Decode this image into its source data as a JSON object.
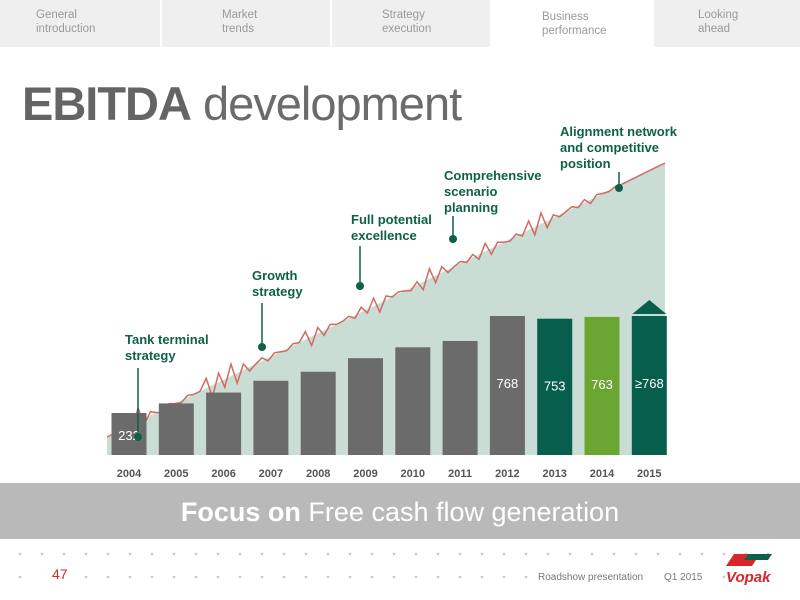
{
  "nav": {
    "tabs": [
      {
        "line1": "General",
        "line2": "introduction"
      },
      {
        "line1": "Market",
        "line2": "trends"
      },
      {
        "line1": "Strategy",
        "line2": "execution"
      },
      {
        "line1": "Business",
        "line2": "performance"
      },
      {
        "line1": "Looking",
        "line2": "ahead"
      }
    ],
    "active_index": 3
  },
  "title": {
    "bold": "EBITDA",
    "rest": "development"
  },
  "chart_data": {
    "type": "bar",
    "categories": [
      "2004",
      "2005",
      "2006",
      "2007",
      "2008",
      "2009",
      "2010",
      "2011",
      "2012",
      "2013",
      "2014",
      "2015"
    ],
    "values": [
      232,
      285,
      345,
      410,
      460,
      535,
      595,
      630,
      768,
      753,
      763,
      768
    ],
    "value_labels": [
      "232",
      "",
      "",
      "",
      "",
      "",
      "",
      "",
      "768",
      "753",
      "763",
      "≥768"
    ],
    "bar_colors": [
      "#6b6b6b",
      "#6b6b6b",
      "#6b6b6b",
      "#6b6b6b",
      "#6b6b6b",
      "#6b6b6b",
      "#6b6b6b",
      "#6b6b6b",
      "#6b6b6b",
      "#075e4d",
      "#6aa631",
      "#075e4d"
    ],
    "arrow_on_last": true,
    "background_area": {
      "color": "#c9ddd5",
      "line_color": "#d26a60"
    },
    "annotations": [
      {
        "text": "Tank terminal\nstrategy",
        "year": "2004"
      },
      {
        "text": "Growth\nstrategy",
        "year": "2007"
      },
      {
        "text": "Full potential\nexcellence",
        "year": "2009"
      },
      {
        "text": "Comprehensive\nscenario\nplanning",
        "year": "2011"
      },
      {
        "text": "Alignment network\nand competitive\nposition",
        "year": "2014"
      }
    ],
    "grid": false
  },
  "banner": {
    "bold": "Focus on",
    "rest": "Free cash flow generation"
  },
  "footer": {
    "page_number": "47",
    "presentation": "Roadshow presentation",
    "period": "Q1 2015"
  },
  "logo": {
    "text": "Vopak",
    "colors": {
      "red": "#d9262b",
      "green": "#0f6048"
    }
  }
}
